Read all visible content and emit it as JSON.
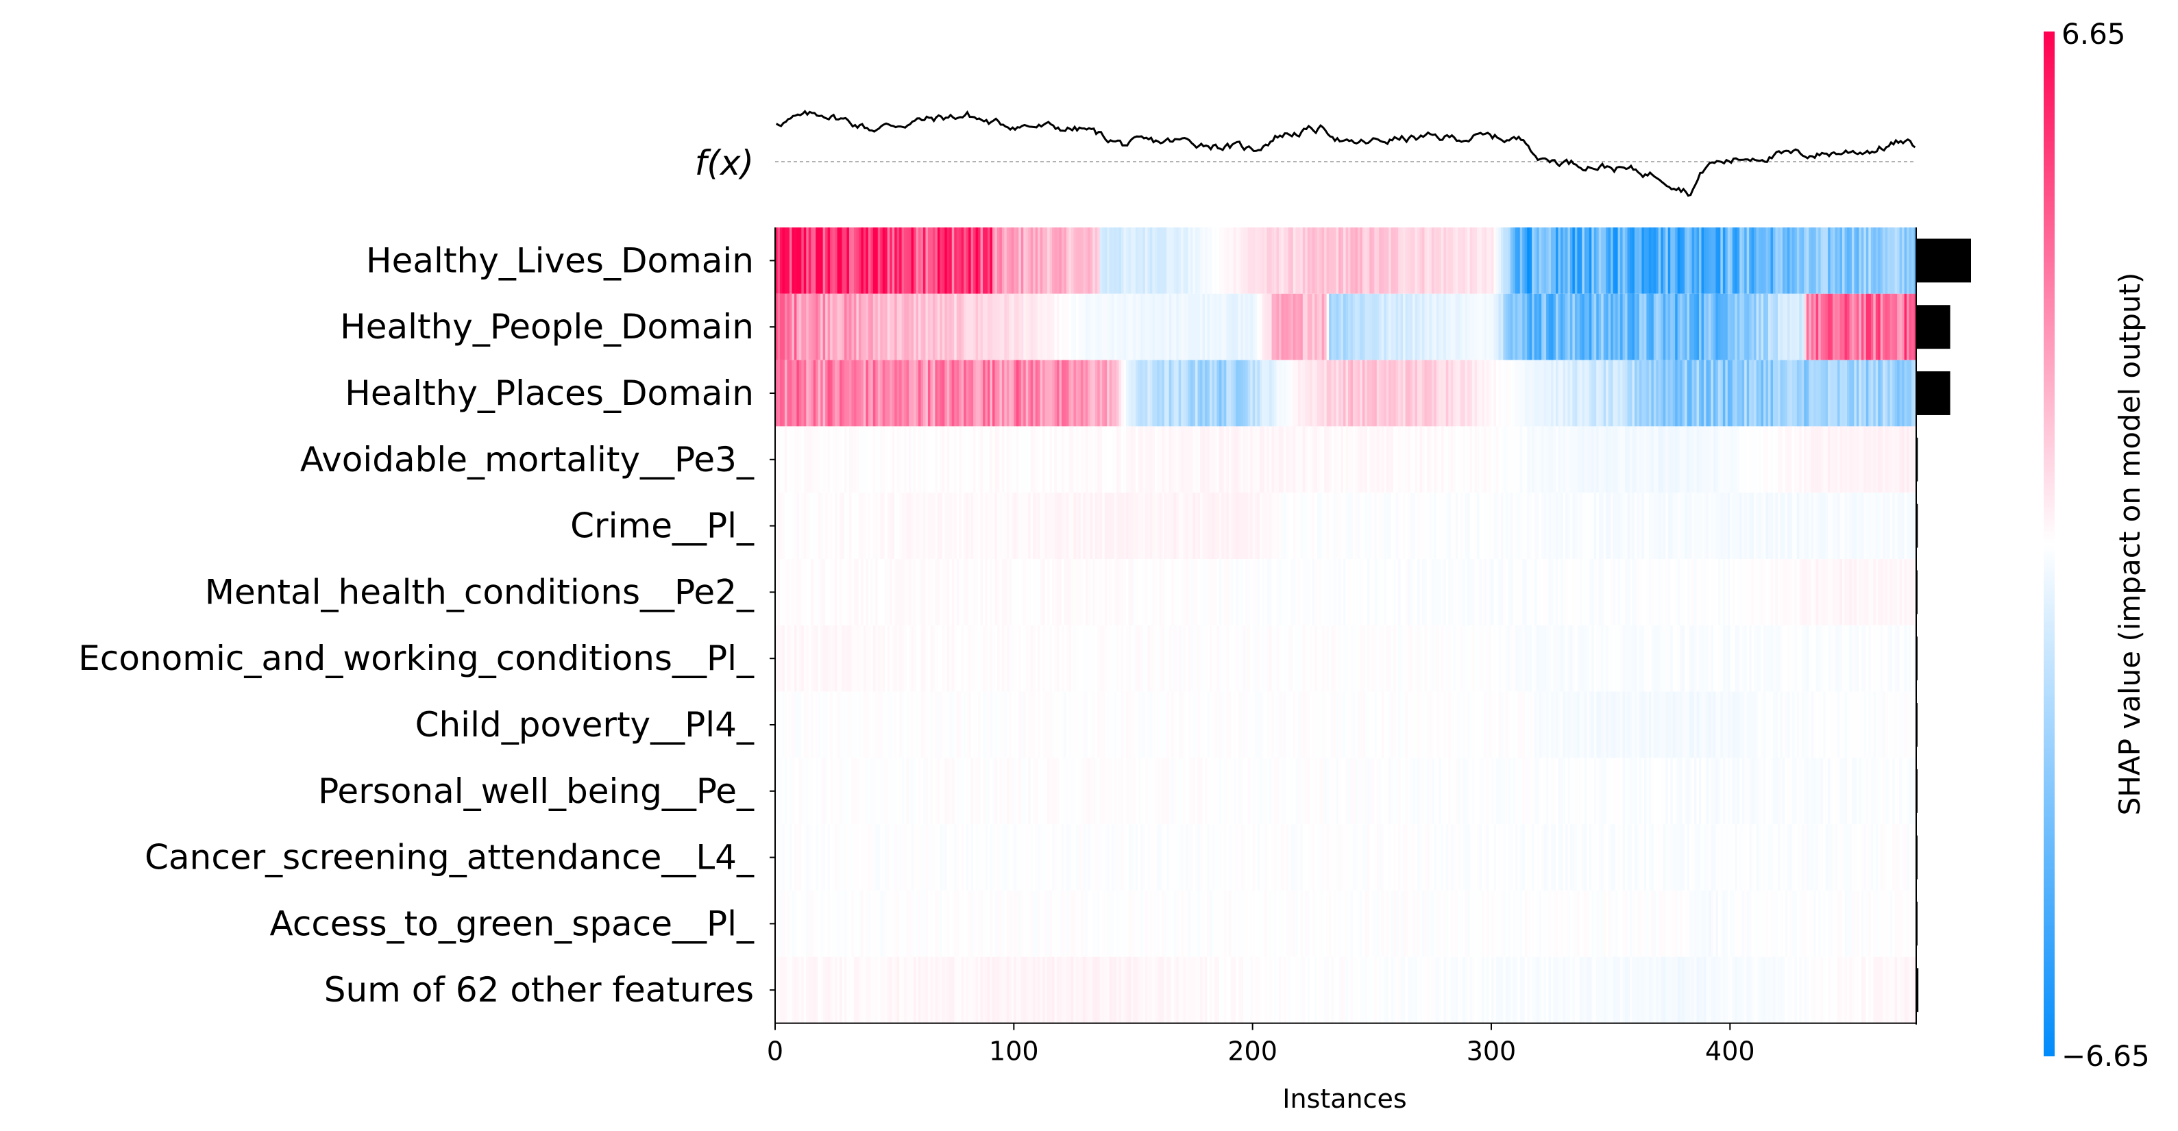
{
  "chart_data": {
    "type": "heatmap",
    "subtype": "SHAP heatmap plot",
    "xlabel": "Instances",
    "xticks": [
      0,
      100,
      200,
      300,
      400
    ],
    "n_instances": 478,
    "fx_label": "f(x)",
    "colorbar": {
      "label": "SHAP value (impact on model output)",
      "max": 6.65,
      "min": -6.65,
      "max_label": "6.65",
      "min_label": "−6.65",
      "colors": {
        "positive": "#ff0051",
        "neutral": "#ffffff",
        "negative": "#008bfb"
      }
    },
    "features": [
      {
        "name": "Healthy_Lives_Domain",
        "importance": 1.0,
        "profile": [
          [
            0,
            5.5
          ],
          [
            90,
            5.2
          ],
          [
            91,
            2.5
          ],
          [
            135,
            1.5
          ],
          [
            136,
            -1.2
          ],
          [
            170,
            -0.8
          ],
          [
            200,
            0.8
          ],
          [
            240,
            1.6
          ],
          [
            280,
            1.0
          ],
          [
            300,
            0.5
          ],
          [
            312,
            -4.5
          ],
          [
            400,
            -4.2
          ],
          [
            440,
            -3.2
          ],
          [
            478,
            -2.6
          ]
        ]
      },
      {
        "name": "Healthy_People_Domain",
        "importance": 0.62,
        "profile": [
          [
            0,
            3.5
          ],
          [
            40,
            2.0
          ],
          [
            100,
            0.8
          ],
          [
            130,
            -0.3
          ],
          [
            200,
            -0.6
          ],
          [
            210,
            2.0
          ],
          [
            230,
            2.0
          ],
          [
            232,
            -2.0
          ],
          [
            260,
            -1.0
          ],
          [
            300,
            -0.2
          ],
          [
            312,
            -3.8
          ],
          [
            390,
            -3.8
          ],
          [
            430,
            -1.0
          ],
          [
            432,
            3.5
          ],
          [
            478,
            4.0
          ]
        ]
      },
      {
        "name": "Healthy_Places_Domain",
        "importance": 0.62,
        "profile": [
          [
            0,
            3.5
          ],
          [
            50,
            3.0
          ],
          [
            100,
            3.3
          ],
          [
            140,
            2.2
          ],
          [
            150,
            -1.5
          ],
          [
            190,
            -2.5
          ],
          [
            220,
            0.5
          ],
          [
            240,
            1.5
          ],
          [
            280,
            1.2
          ],
          [
            300,
            0.2
          ],
          [
            350,
            -1.5
          ],
          [
            380,
            -3.2
          ],
          [
            420,
            -2.6
          ],
          [
            478,
            -2.4
          ]
        ]
      },
      {
        "name": "Avoidable_mortality__Pe3_",
        "importance": 0.03,
        "profile": [
          [
            0,
            0.05
          ],
          [
            130,
            0.1
          ],
          [
            200,
            0.25
          ],
          [
            300,
            0.05
          ],
          [
            320,
            -0.2
          ],
          [
            380,
            -0.4
          ],
          [
            440,
            0.3
          ],
          [
            478,
            0.35
          ]
        ]
      },
      {
        "name": "Crime__Pl_",
        "importance": 0.03,
        "profile": [
          [
            0,
            0.05
          ],
          [
            130,
            0.25
          ],
          [
            200,
            0.3
          ],
          [
            210,
            0.0
          ],
          [
            300,
            -0.1
          ],
          [
            400,
            -0.25
          ],
          [
            478,
            -0.2
          ]
        ]
      },
      {
        "name": "Mental_health_conditions__Pe2_",
        "importance": 0.02,
        "profile": [
          [
            0,
            0.05
          ],
          [
            130,
            0.1
          ],
          [
            200,
            -0.05
          ],
          [
            300,
            -0.1
          ],
          [
            400,
            -0.05
          ],
          [
            440,
            0.25
          ],
          [
            478,
            0.25
          ]
        ]
      },
      {
        "name": "Economic_and_working_conditions__Pl_",
        "importance": 0.02,
        "profile": [
          [
            0,
            0.2
          ],
          [
            30,
            0.15
          ],
          [
            100,
            0.05
          ],
          [
            300,
            0.0
          ],
          [
            320,
            -0.15
          ],
          [
            478,
            -0.1
          ]
        ]
      },
      {
        "name": "Child_poverty__Pl4_",
        "importance": 0.01,
        "profile": [
          [
            0,
            0.0
          ],
          [
            315,
            0.0
          ],
          [
            320,
            -0.2
          ],
          [
            390,
            -0.3
          ],
          [
            420,
            -0.1
          ],
          [
            478,
            0.0
          ]
        ]
      },
      {
        "name": "Personal_well_being__Pe_",
        "importance": 0.01,
        "profile": [
          [
            0,
            0.0
          ],
          [
            140,
            0.05
          ],
          [
            200,
            0.0
          ],
          [
            320,
            -0.05
          ],
          [
            400,
            -0.15
          ],
          [
            478,
            -0.05
          ]
        ]
      },
      {
        "name": "Cancer_screening_attendance__L4_",
        "importance": 0.01,
        "profile": [
          [
            0,
            0.0
          ],
          [
            150,
            -0.05
          ],
          [
            250,
            0.0
          ],
          [
            320,
            -0.1
          ],
          [
            420,
            -0.1
          ],
          [
            478,
            0.0
          ]
        ]
      },
      {
        "name": "Access_to_green_space__Pl_",
        "importance": 0.01,
        "profile": [
          [
            0,
            0.0
          ],
          [
            380,
            0.0
          ],
          [
            390,
            -0.2
          ],
          [
            400,
            -0.05
          ],
          [
            478,
            0.0
          ]
        ]
      },
      {
        "name": "Sum of 62 other features",
        "importance": 0.04,
        "profile": [
          [
            0,
            0.15
          ],
          [
            100,
            0.25
          ],
          [
            140,
            0.3
          ],
          [
            200,
            0.05
          ],
          [
            300,
            -0.1
          ],
          [
            380,
            -0.3
          ],
          [
            420,
            -0.1
          ],
          [
            470,
            0.2
          ],
          [
            478,
            0.2
          ]
        ]
      }
    ],
    "fx_profile": [
      [
        0,
        0.72
      ],
      [
        20,
        0.88
      ],
      [
        40,
        0.6
      ],
      [
        60,
        0.75
      ],
      [
        80,
        0.85
      ],
      [
        90,
        0.7
      ],
      [
        130,
        0.58
      ],
      [
        145,
        0.32
      ],
      [
        170,
        0.38
      ],
      [
        200,
        0.22
      ],
      [
        210,
        0.48
      ],
      [
        220,
        0.55
      ],
      [
        230,
        0.6
      ],
      [
        240,
        0.3
      ],
      [
        260,
        0.42
      ],
      [
        300,
        0.45
      ],
      [
        315,
        0.38
      ],
      [
        320,
        0.05
      ],
      [
        350,
        -0.1
      ],
      [
        370,
        -0.25
      ],
      [
        383,
        -0.55
      ],
      [
        390,
        -0.05
      ],
      [
        410,
        0.1
      ],
      [
        440,
        0.15
      ],
      [
        460,
        0.22
      ],
      [
        470,
        0.35
      ],
      [
        478,
        0.28
      ]
    ],
    "fx_baseline": 0.0
  }
}
